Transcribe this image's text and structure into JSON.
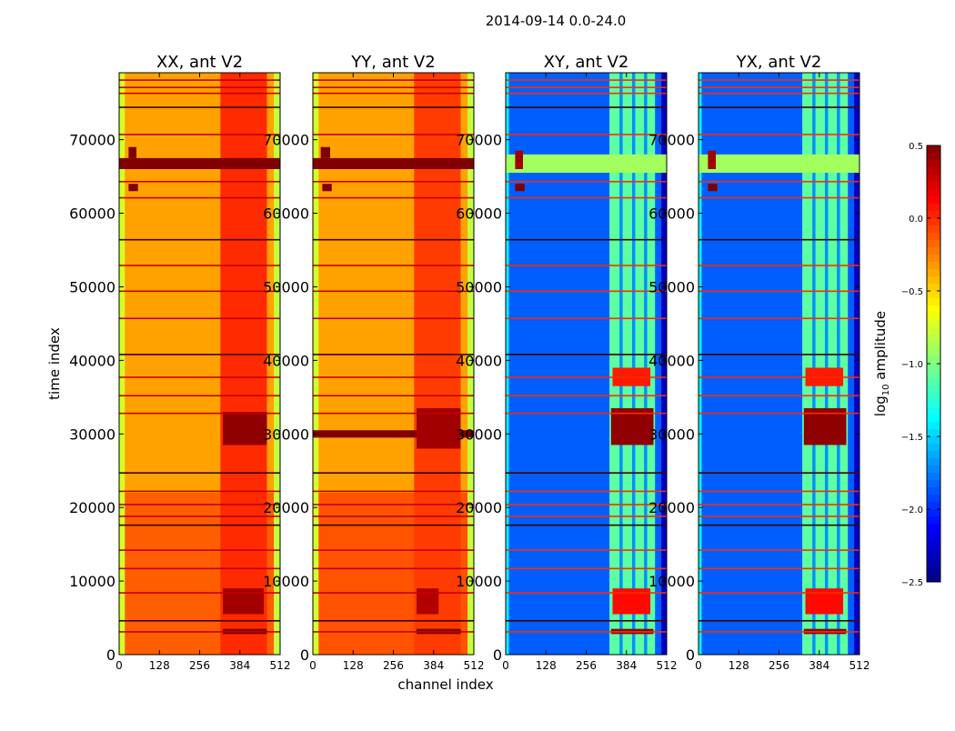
{
  "chart_data": {
    "type": "heatmap",
    "title": "2014-09-14 0.0-24.0",
    "xlabel": "channel index",
    "ylabel": "time index",
    "xlim": [
      0,
      512
    ],
    "ylim": [
      0,
      79100
    ],
    "xticks": [
      0,
      128,
      256,
      384,
      512
    ],
    "xtick_labels": [
      "0",
      "128",
      "256",
      "384",
      "512"
    ],
    "yticks": [
      0,
      10000,
      20000,
      30000,
      40000,
      50000,
      60000,
      70000
    ],
    "ytick_labels": [
      "0",
      "10000",
      "20000",
      "30000",
      "40000",
      "50000",
      "60000",
      "70000"
    ],
    "colormap": "jet",
    "colorbar": {
      "label_main": "log",
      "label_sub": "10",
      "label_rest": " amplitude",
      "range": [
        -2.5,
        0.5
      ],
      "ticks": [
        0.5,
        0.0,
        -0.5,
        -1.0,
        -1.5,
        -2.0,
        -2.5
      ],
      "tick_labels": [
        "0.5",
        "0.0",
        "−0.5",
        "−1.0",
        "−1.5",
        "−2.0",
        "−2.5"
      ]
    },
    "flagged_times": [
      78100,
      77100,
      76300,
      74400,
      70700,
      64300,
      62100,
      56400,
      52900,
      49400,
      45700,
      40800,
      37700,
      35200,
      32800,
      24700,
      22200,
      20400,
      18800,
      17600,
      14200,
      11700,
      8400,
      4600,
      3100
    ],
    "panels": [
      {
        "title": "XX, ant V2",
        "line_value": 0.3,
        "regions": [
          {
            "t": [
              0,
              79100
            ],
            "c": [
              0,
              512
            ],
            "v": -0.35
          },
          {
            "t": [
              0,
              22000
            ],
            "c": [
              0,
              512
            ],
            "v": -0.15
          },
          {
            "t": [
              0,
              79100
            ],
            "c": [
              0,
              18
            ],
            "v": -0.75
          },
          {
            "t": [
              0,
              79100
            ],
            "c": [
              492,
              512
            ],
            "v": -0.8
          },
          {
            "t": [
              0,
              79100
            ],
            "c": [
              322,
              470
            ],
            "v": 0.0
          },
          {
            "t": [
              66000,
              67500
            ],
            "c": [
              0,
              512
            ],
            "v": 0.5
          },
          {
            "t": [
              28500,
              33000
            ],
            "c": [
              330,
              470
            ],
            "v": 0.45
          },
          {
            "t": [
              5500,
              9000
            ],
            "c": [
              330,
              460
            ],
            "v": 0.4
          },
          {
            "t": [
              2800,
              3500
            ],
            "c": [
              330,
              470
            ],
            "v": 0.5
          },
          {
            "t": [
              63000,
              64000
            ],
            "c": [
              30,
              60
            ],
            "v": 0.5
          },
          {
            "t": [
              67500,
              69000
            ],
            "c": [
              30,
              55
            ],
            "v": 0.5
          }
        ]
      },
      {
        "title": "YY, ant V2",
        "line_value": 0.3,
        "regions": [
          {
            "t": [
              0,
              79100
            ],
            "c": [
              0,
              512
            ],
            "v": -0.35
          },
          {
            "t": [
              0,
              22000
            ],
            "c": [
              0,
              512
            ],
            "v": -0.12
          },
          {
            "t": [
              0,
              79100
            ],
            "c": [
              0,
              18
            ],
            "v": -0.75
          },
          {
            "t": [
              0,
              79100
            ],
            "c": [
              492,
              512
            ],
            "v": -0.8
          },
          {
            "t": [
              0,
              79100
            ],
            "c": [
              322,
              470
            ],
            "v": -0.05
          },
          {
            "t": [
              66000,
              67500
            ],
            "c": [
              0,
              512
            ],
            "v": 0.5
          },
          {
            "t": [
              29500,
              30500
            ],
            "c": [
              0,
              512
            ],
            "v": 0.5
          },
          {
            "t": [
              28000,
              33500
            ],
            "c": [
              330,
              470
            ],
            "v": 0.4
          },
          {
            "t": [
              5500,
              9000
            ],
            "c": [
              330,
              400
            ],
            "v": 0.35
          },
          {
            "t": [
              2800,
              3500
            ],
            "c": [
              330,
              470
            ],
            "v": 0.5
          },
          {
            "t": [
              63000,
              64000
            ],
            "c": [
              30,
              60
            ],
            "v": 0.5
          },
          {
            "t": [
              67500,
              69000
            ],
            "c": [
              25,
              55
            ],
            "v": 0.5
          }
        ]
      },
      {
        "title": "XY, ant V2",
        "line_value": 0.0,
        "regions": [
          {
            "t": [
              0,
              79100
            ],
            "c": [
              0,
              512
            ],
            "v": -1.85
          },
          {
            "t": [
              0,
              79100
            ],
            "c": [
              0,
              10
            ],
            "v": -1.4
          },
          {
            "t": [
              0,
              79100
            ],
            "c": [
              495,
              512
            ],
            "v": -2.3
          },
          {
            "t": [
              0,
              79100
            ],
            "c": [
              330,
              475
            ],
            "v": -1.1
          },
          {
            "t": [
              0,
              79100
            ],
            "c": [
              362,
              372
            ],
            "v": -1.7
          },
          {
            "t": [
              0,
              79100
            ],
            "c": [
              402,
              412
            ],
            "v": -1.7
          },
          {
            "t": [
              0,
              79100
            ],
            "c": [
              440,
              450
            ],
            "v": -1.7
          },
          {
            "t": [
              65500,
              68000
            ],
            "c": [
              0,
              512
            ],
            "v": -0.9
          },
          {
            "t": [
              28500,
              33500
            ],
            "c": [
              335,
              470
            ],
            "v": 0.45
          },
          {
            "t": [
              36500,
              39000
            ],
            "c": [
              340,
              460
            ],
            "v": 0.05
          },
          {
            "t": [
              5500,
              9000
            ],
            "c": [
              340,
              460
            ],
            "v": 0.1
          },
          {
            "t": [
              2800,
              3500
            ],
            "c": [
              335,
              470
            ],
            "v": 0.45
          },
          {
            "t": [
              63000,
              64000
            ],
            "c": [
              30,
              60
            ],
            "v": 0.5
          },
          {
            "t": [
              66000,
              68500
            ],
            "c": [
              30,
              55
            ],
            "v": 0.4
          }
        ]
      },
      {
        "title": "YX, ant V2",
        "line_value": 0.0,
        "regions": [
          {
            "t": [
              0,
              79100
            ],
            "c": [
              0,
              512
            ],
            "v": -1.85
          },
          {
            "t": [
              0,
              79100
            ],
            "c": [
              0,
              10
            ],
            "v": -1.4
          },
          {
            "t": [
              0,
              79100
            ],
            "c": [
              495,
              512
            ],
            "v": -2.3
          },
          {
            "t": [
              0,
              79100
            ],
            "c": [
              330,
              475
            ],
            "v": -1.1
          },
          {
            "t": [
              0,
              79100
            ],
            "c": [
              362,
              372
            ],
            "v": -1.7
          },
          {
            "t": [
              0,
              79100
            ],
            "c": [
              402,
              412
            ],
            "v": -1.7
          },
          {
            "t": [
              0,
              79100
            ],
            "c": [
              440,
              450
            ],
            "v": -1.7
          },
          {
            "t": [
              65500,
              68000
            ],
            "c": [
              0,
              512
            ],
            "v": -0.9
          },
          {
            "t": [
              28500,
              33500
            ],
            "c": [
              335,
              470
            ],
            "v": 0.45
          },
          {
            "t": [
              36500,
              39000
            ],
            "c": [
              340,
              460
            ],
            "v": 0.05
          },
          {
            "t": [
              5500,
              9000
            ],
            "c": [
              340,
              460
            ],
            "v": 0.1
          },
          {
            "t": [
              2800,
              3500
            ],
            "c": [
              335,
              470
            ],
            "v": 0.45
          },
          {
            "t": [
              63000,
              64000
            ],
            "c": [
              30,
              60
            ],
            "v": 0.5
          },
          {
            "t": [
              66000,
              68500
            ],
            "c": [
              30,
              55
            ],
            "v": 0.4
          }
        ]
      }
    ]
  }
}
